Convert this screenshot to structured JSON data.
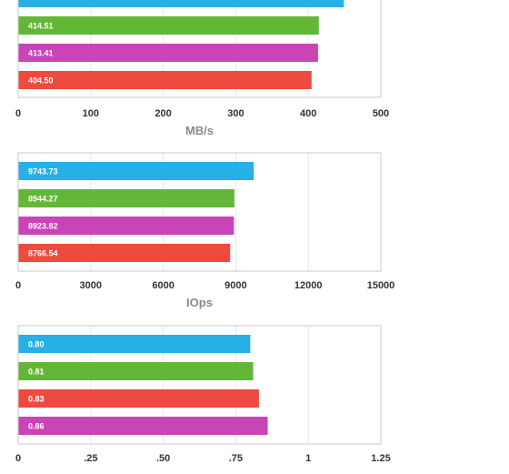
{
  "colors": {
    "blue": "#27b0e6",
    "green": "#63b736",
    "magenta": "#c944b6",
    "red": "#ee4a3f",
    "frame": "#c8c8c8",
    "grid": "#e8e8e8",
    "label": "#ffffff",
    "tick": "#333333",
    "axis_title": "#8a8a8a"
  },
  "chart_data": [
    {
      "type": "bar",
      "orientation": "horizontal",
      "xlabel": "MB/s",
      "xlim": [
        0,
        500
      ],
      "ticks": [
        "0",
        "100",
        "200",
        "300",
        "400",
        "500"
      ],
      "grid": true,
      "note": "top bar partially cropped; its label is cut off",
      "bars": [
        {
          "value": 449.0,
          "label": "",
          "color": "blue"
        },
        {
          "value": 414.51,
          "label": "414.51",
          "color": "green"
        },
        {
          "value": 413.41,
          "label": "413.41",
          "color": "magenta"
        },
        {
          "value": 404.5,
          "label": "404.50",
          "color": "red"
        }
      ]
    },
    {
      "type": "bar",
      "orientation": "horizontal",
      "xlabel": "IOps",
      "xlim": [
        0,
        15000
      ],
      "ticks": [
        "0",
        "3000",
        "6000",
        "9000",
        "12000",
        "15000"
      ],
      "grid": true,
      "bars": [
        {
          "value": 9743.73,
          "label": "9743.73",
          "color": "blue"
        },
        {
          "value": 8944.27,
          "label": "8944.27",
          "color": "green"
        },
        {
          "value": 8923.82,
          "label": "8923.82",
          "color": "magenta"
        },
        {
          "value": 8766.54,
          "label": "8766.54",
          "color": "red"
        }
      ]
    },
    {
      "type": "bar",
      "orientation": "horizontal",
      "xlabel": "",
      "xlim": [
        0,
        1.25
      ],
      "ticks": [
        "0",
        ".25",
        ".50",
        ".75",
        "1",
        "1.25"
      ],
      "grid": true,
      "bars": [
        {
          "value": 0.8,
          "label": "0.80",
          "color": "blue"
        },
        {
          "value": 0.81,
          "label": "0.81",
          "color": "green"
        },
        {
          "value": 0.83,
          "label": "0.83",
          "color": "red"
        },
        {
          "value": 0.86,
          "label": "0.86",
          "color": "magenta"
        }
      ]
    }
  ]
}
